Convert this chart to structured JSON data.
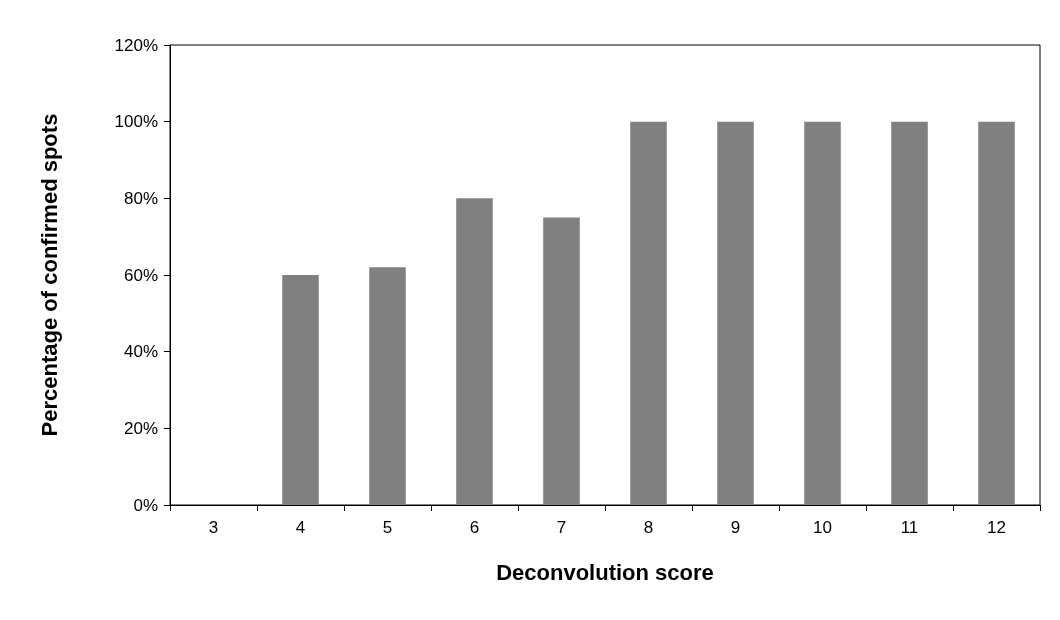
{
  "chart_data": {
    "type": "bar",
    "xlabel": "Deconvolution score",
    "ylabel": "Percentage of confirmed spots",
    "categories": [
      "3",
      "4",
      "5",
      "6",
      "7",
      "8",
      "9",
      "10",
      "11",
      "12"
    ],
    "values": [
      0,
      60,
      62,
      80,
      75,
      100,
      100,
      100,
      100,
      100
    ],
    "color": "#808080",
    "ylim": [
      0,
      120
    ],
    "yticks": [
      {
        "value": 0,
        "label": "0%"
      },
      {
        "value": 20,
        "label": "20%"
      },
      {
        "value": 40,
        "label": "40%"
      },
      {
        "value": 60,
        "label": "60%"
      },
      {
        "value": 80,
        "label": "80%"
      },
      {
        "value": 100,
        "label": "100%"
      },
      {
        "value": 120,
        "label": "120%"
      }
    ],
    "grid": false
  }
}
